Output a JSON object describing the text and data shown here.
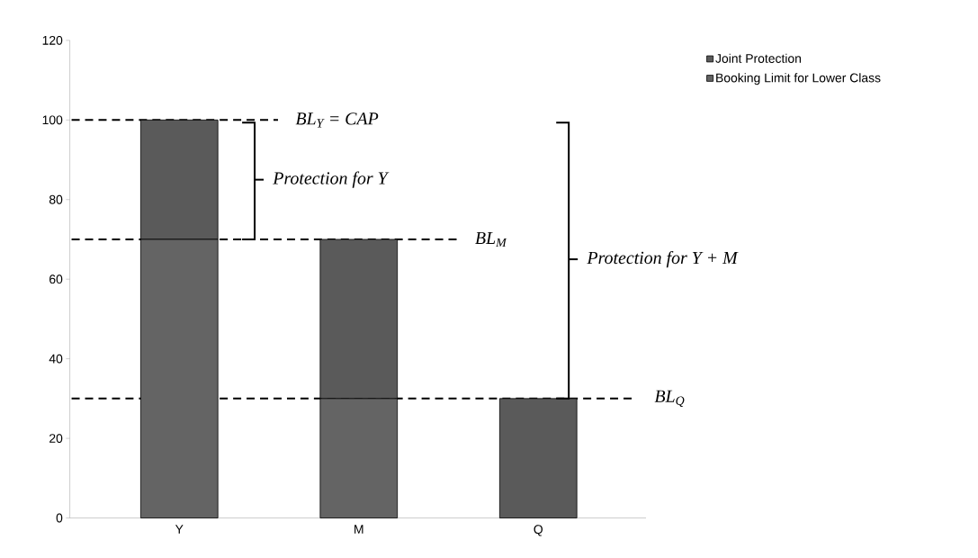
{
  "chart_data": {
    "type": "bar",
    "stacked": true,
    "categories": [
      "Y",
      "M",
      "Q"
    ],
    "series": [
      {
        "name": "Booking Limit for Lower Class",
        "color": "#646464",
        "values": [
          70,
          30,
          0
        ]
      },
      {
        "name": "Joint Protection",
        "color": "#5a5a5a",
        "values": [
          30,
          40,
          30
        ]
      }
    ],
    "ylim": [
      0,
      120
    ],
    "yticks": [
      0,
      20,
      40,
      60,
      80,
      100,
      120
    ],
    "legend": "top right",
    "grid": false,
    "ref_lines": [
      {
        "axis": "y",
        "value": 100,
        "label": "BL$_{Y}$ = CAP",
        "line_style": "dashed",
        "color": "#000000"
      },
      {
        "axis": "y",
        "value": 70,
        "label": "BL$_{M}$",
        "line_style": "dashed",
        "color": "#000000"
      },
      {
        "axis": "y",
        "value": 30,
        "label": "BL$_{Q}$",
        "line_style": "dashed",
        "color": "#000000"
      }
    ],
    "annotations": [
      "Protection for Y",
      "Protection for Y + M"
    ]
  }
}
